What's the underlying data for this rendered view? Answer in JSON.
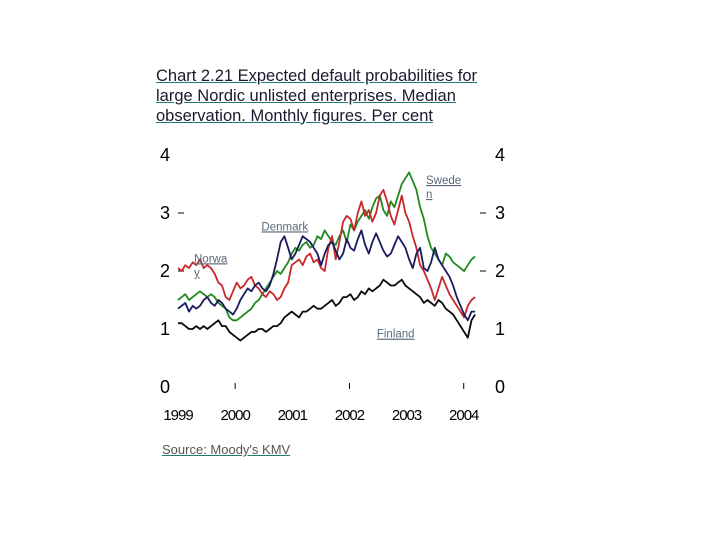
{
  "title_lines": [
    "Chart 2.21 Expected default probabilities for",
    "large Nordic unlisted enterprises. Median",
    "observation. Monthly figures. Per cent"
  ],
  "source": "Source: Moody's KMV",
  "chart_data": {
    "type": "line",
    "title": "Chart 2.21 Expected default probabilities for large Nordic unlisted enterprises. Median observation. Monthly figures. Per cent",
    "xlabel": "",
    "ylabel": "Per cent",
    "xlim": [
      1999.0,
      2004.25
    ],
    "ylim": [
      0,
      4
    ],
    "x_ticks": [
      "1999",
      "2000",
      "2001",
      "2002",
      "2003",
      "2004"
    ],
    "y_ticks": [
      "0",
      "1",
      "2",
      "3",
      "4"
    ],
    "series": [
      {
        "name": "Norway",
        "label_lines": [
          "Norwa",
          "y"
        ],
        "color": "#1e8a1e",
        "values": [
          1.5,
          1.55,
          1.6,
          1.5,
          1.55,
          1.6,
          1.65,
          1.6,
          1.55,
          1.6,
          1.55,
          1.45,
          1.4,
          1.35,
          1.2,
          1.15,
          1.15,
          1.2,
          1.25,
          1.3,
          1.35,
          1.45,
          1.5,
          1.6,
          1.7,
          1.8,
          1.9,
          2.0,
          1.95,
          2.05,
          2.15,
          2.3,
          2.4,
          2.35,
          2.45,
          2.5,
          2.4,
          2.45,
          2.6,
          2.55,
          2.7,
          2.6,
          2.5,
          2.45,
          2.6,
          2.7,
          2.5,
          2.8,
          2.7,
          2.85,
          2.95,
          3.05,
          2.9,
          3.1,
          3.25,
          3.3,
          3.05,
          2.95,
          3.2,
          3.1,
          3.3,
          3.5,
          3.6,
          3.7,
          3.55,
          3.4,
          3.1,
          2.9,
          2.6,
          2.4,
          2.3,
          2.2,
          2.1,
          2.3,
          2.25,
          2.15,
          2.1,
          2.05,
          2.0,
          2.1,
          2.2,
          2.25
        ],
        "label_x": 1999.28,
        "label_y": 2.15
      },
      {
        "name": "Sweden",
        "label_lines": [
          "Swede",
          "n"
        ],
        "color": "#c8282a",
        "values": [
          2.05,
          2.0,
          2.1,
          2.05,
          2.15,
          2.1,
          2.2,
          2.05,
          2.1,
          2.05,
          1.95,
          1.8,
          1.75,
          1.55,
          1.5,
          1.65,
          1.8,
          1.7,
          1.75,
          1.85,
          1.9,
          1.75,
          1.7,
          1.6,
          1.55,
          1.65,
          1.6,
          1.5,
          1.55,
          1.7,
          1.8,
          2.1,
          2.15,
          2.2,
          2.1,
          2.25,
          2.3,
          2.15,
          2.2,
          2.05,
          2.0,
          2.4,
          2.6,
          2.2,
          2.5,
          2.85,
          2.95,
          2.9,
          2.7,
          3.0,
          3.2,
          2.95,
          3.05,
          2.85,
          3.0,
          3.3,
          3.4,
          3.2,
          2.95,
          2.8,
          3.05,
          3.3,
          3.0,
          2.85,
          2.6,
          2.4,
          2.1,
          2.0,
          1.85,
          1.7,
          1.5,
          1.7,
          1.9,
          1.75,
          1.6,
          1.5,
          1.4,
          1.3,
          1.2,
          1.4,
          1.5,
          1.55
        ],
        "label_x": 2003.34,
        "label_y": 3.5
      },
      {
        "name": "Denmark",
        "label_lines": [
          "Denmark"
        ],
        "color": "#1a1a5e",
        "values": [
          1.35,
          1.4,
          1.45,
          1.3,
          1.4,
          1.35,
          1.4,
          1.5,
          1.55,
          1.45,
          1.4,
          1.5,
          1.45,
          1.35,
          1.3,
          1.25,
          1.35,
          1.5,
          1.6,
          1.7,
          1.65,
          1.75,
          1.8,
          1.7,
          1.65,
          1.75,
          1.95,
          2.2,
          2.5,
          2.6,
          2.4,
          2.2,
          2.3,
          2.45,
          2.6,
          2.55,
          2.5,
          2.4,
          2.3,
          2.1,
          2.3,
          2.45,
          2.5,
          2.35,
          2.2,
          2.3,
          2.55,
          2.4,
          2.35,
          2.55,
          2.7,
          2.45,
          2.3,
          2.5,
          2.65,
          2.5,
          2.35,
          2.25,
          2.3,
          2.45,
          2.6,
          2.5,
          2.4,
          2.2,
          2.05,
          2.3,
          2.4,
          2.05,
          2.0,
          2.15,
          2.4,
          2.2,
          2.1,
          2.0,
          1.9,
          1.75,
          1.55,
          1.4,
          1.25,
          1.15,
          1.3,
          1.3
        ],
        "label_x": 2000.46,
        "label_y": 2.7
      },
      {
        "name": "Finland",
        "label_lines": [
          "Finland"
        ],
        "color": "#0a0a0a",
        "values": [
          1.1,
          1.1,
          1.05,
          1.0,
          1.0,
          1.05,
          1.0,
          1.05,
          1.0,
          1.05,
          1.1,
          1.15,
          1.05,
          1.05,
          0.95,
          0.9,
          0.85,
          0.8,
          0.85,
          0.9,
          0.95,
          0.95,
          1.0,
          1.0,
          0.95,
          1.0,
          1.05,
          1.05,
          1.1,
          1.2,
          1.25,
          1.3,
          1.25,
          1.2,
          1.3,
          1.3,
          1.35,
          1.4,
          1.35,
          1.35,
          1.4,
          1.45,
          1.5,
          1.4,
          1.45,
          1.55,
          1.55,
          1.6,
          1.5,
          1.55,
          1.65,
          1.6,
          1.7,
          1.65,
          1.7,
          1.75,
          1.85,
          1.8,
          1.75,
          1.75,
          1.8,
          1.85,
          1.75,
          1.7,
          1.65,
          1.6,
          1.55,
          1.45,
          1.5,
          1.45,
          1.4,
          1.5,
          1.45,
          1.35,
          1.3,
          1.25,
          1.15,
          1.05,
          0.95,
          0.85,
          1.15,
          1.25
        ],
        "label_x": 2002.48,
        "label_y": 0.85
      }
    ]
  }
}
